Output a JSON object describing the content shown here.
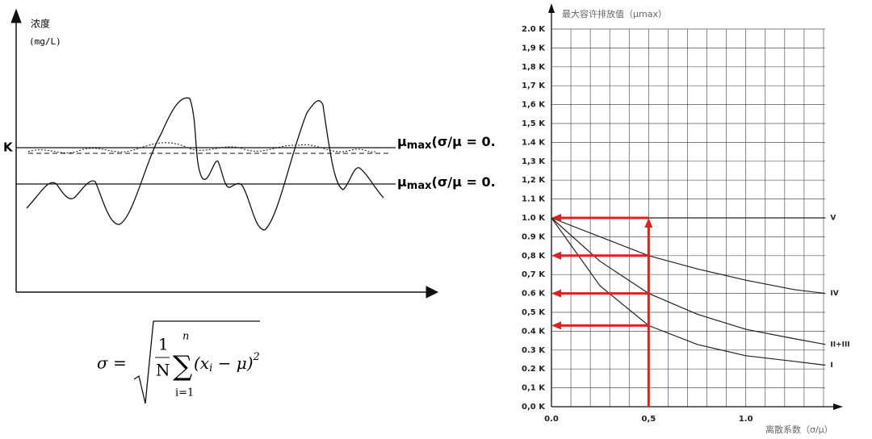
{
  "diagram": {
    "y_label": "浓度",
    "y_unit": "(mg/L)",
    "k_label": "K",
    "line_labels": [
      {
        "symbol": "μ",
        "sub": "max",
        "text": "(σ/μ = 0."
      },
      {
        "symbol": "μ",
        "sub": "max",
        "text": "(σ/μ = 0."
      }
    ]
  },
  "formula": {
    "lhs": "σ =",
    "num": "1",
    "den": "N",
    "upper": "n",
    "lower": "i=1",
    "open": "(x",
    "index": "i",
    "close": " − μ)",
    "power": "2"
  },
  "chart_data": {
    "type": "line",
    "title": "最大容许排放值（μmax）",
    "x_label": "离散系数（σ/μ）",
    "x": [
      0,
      0.25,
      0.5,
      0.75,
      1.0,
      1.25,
      1.41
    ],
    "series": [
      {
        "name": "V",
        "color": "#222222",
        "values": [
          1.0,
          1.0,
          1.0,
          1.0,
          1.0,
          1.0,
          1.0
        ]
      },
      {
        "name": "IV",
        "color": "#222222",
        "values": [
          1.0,
          0.9,
          0.8,
          0.73,
          0.67,
          0.62,
          0.6
        ]
      },
      {
        "name": "II+III",
        "color": "#222222",
        "values": [
          1.0,
          0.77,
          0.6,
          0.49,
          0.41,
          0.36,
          0.33
        ]
      },
      {
        "name": "I",
        "color": "#222222",
        "values": [
          1.0,
          0.64,
          0.43,
          0.33,
          0.27,
          0.24,
          0.22
        ]
      }
    ],
    "xlim": [
      0,
      1.45
    ],
    "ylim": [
      0,
      2.0
    ],
    "xticks": [
      {
        "value": 0,
        "label": "0.0"
      },
      {
        "value": 0.5,
        "label": "0,5"
      },
      {
        "value": 1.0,
        "label": "1.0"
      }
    ],
    "xgrid": [
      0,
      0.1,
      0.2,
      0.3,
      0.4,
      0.5,
      0.6,
      0.7,
      0.8,
      0.9,
      1.0,
      1.1,
      1.2,
      1.3,
      1.4
    ],
    "yticks": [
      {
        "value": 0,
        "label": "0,0 K"
      },
      {
        "value": 0.1,
        "label": "0,1 K"
      },
      {
        "value": 0.2,
        "label": "0.2 K"
      },
      {
        "value": 0.3,
        "label": "0.3 K"
      },
      {
        "value": 0.4,
        "label": "0.4 K"
      },
      {
        "value": 0.5,
        "label": "0,5 K"
      },
      {
        "value": 0.6,
        "label": "0.6 K"
      },
      {
        "value": 0.7,
        "label": "0,7 K"
      },
      {
        "value": 0.8,
        "label": "0,8 K"
      },
      {
        "value": 0.9,
        "label": "0.9 K"
      },
      {
        "value": 1.0,
        "label": "1.0 K"
      },
      {
        "value": 1.1,
        "label": "1.1 K"
      },
      {
        "value": 1.2,
        "label": "1,2 K"
      },
      {
        "value": 1.3,
        "label": "1,3 K"
      },
      {
        "value": 1.4,
        "label": "1.4 K"
      },
      {
        "value": 1.5,
        "label": "1,5 K"
      },
      {
        "value": 1.6,
        "label": "1,6 K"
      },
      {
        "value": 1.7,
        "label": "1,7 K"
      },
      {
        "value": 1.8,
        "label": "1,8 K"
      },
      {
        "value": 1.9,
        "label": "1,9 K"
      },
      {
        "value": 2.0,
        "label": "2.0 K"
      }
    ],
    "grid": true,
    "arrow_color": "#e02020",
    "arrows": [
      {
        "x": [
          0.5,
          0.5
        ],
        "y": [
          0,
          1.0
        ]
      },
      {
        "x": [
          0.5,
          0
        ],
        "y": [
          1.0,
          1.0
        ]
      },
      {
        "x": [
          0.5,
          0
        ],
        "y": [
          0.8,
          0.8
        ]
      },
      {
        "x": [
          0.5,
          0
        ],
        "y": [
          0.6,
          0.6
        ]
      },
      {
        "x": [
          0.5,
          0
        ],
        "y": [
          0.43,
          0.43
        ]
      }
    ]
  }
}
